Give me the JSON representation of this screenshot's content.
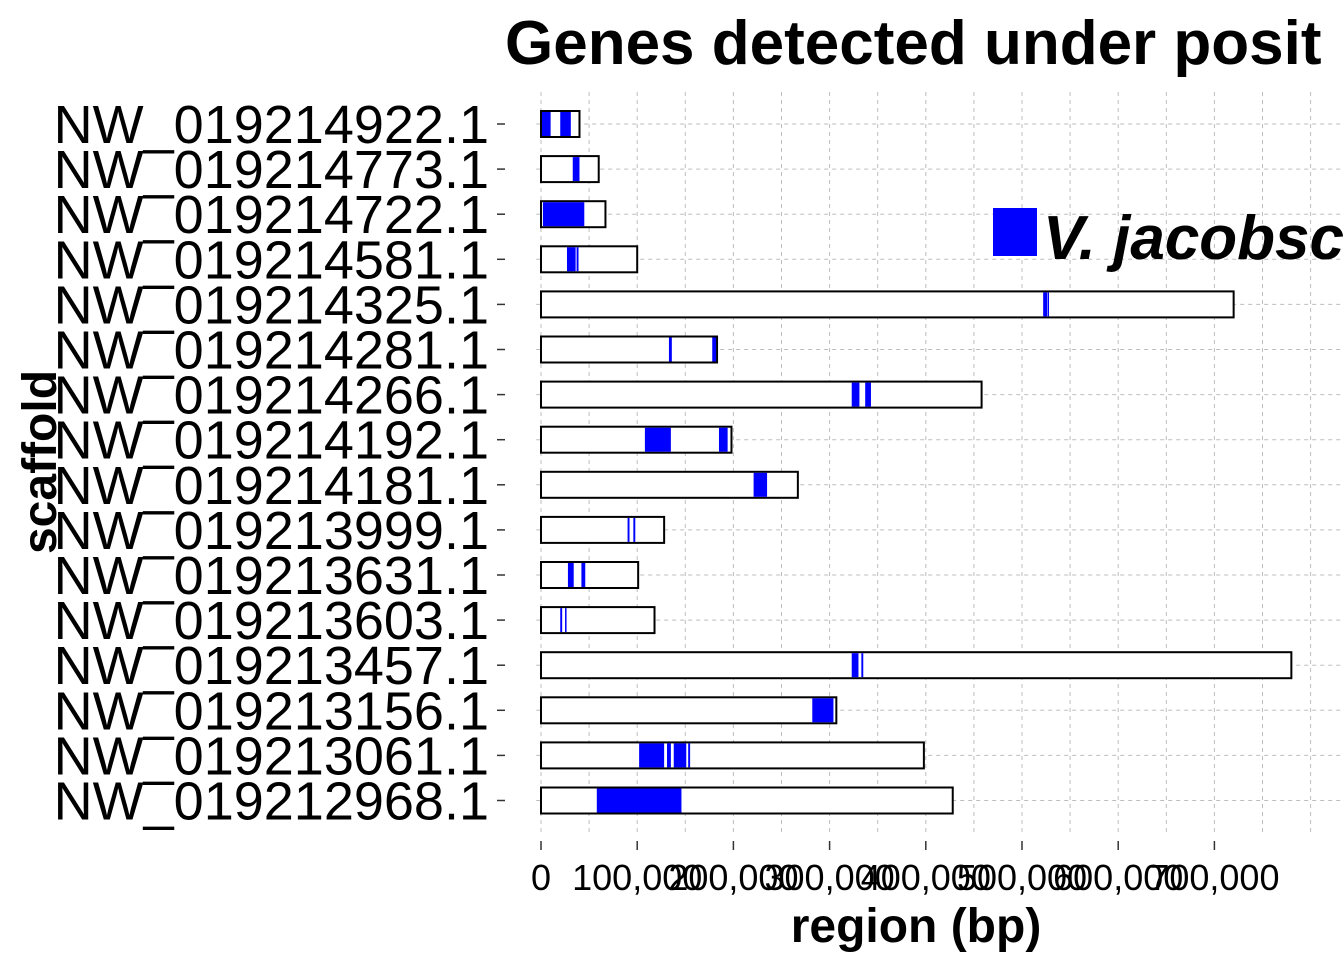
{
  "chart_data": {
    "type": "bar",
    "title": "Genes detected under posit",
    "xlabel": "region (bp)",
    "ylabel": "scaffold",
    "xlim": [
      -5000,
      830000
    ],
    "x_ticks": [
      0,
      100000,
      200000,
      300000,
      400000,
      500000,
      600000,
      700000
    ],
    "x_tick_labels": [
      "0",
      "100,000",
      "200,000",
      "300,000",
      "400,000",
      "500,000",
      "600,000",
      "700,000"
    ],
    "grid": true,
    "legend": {
      "placement": "top-right",
      "entries": [
        {
          "label": "V. jacobsc",
          "color": "#0000ff"
        }
      ]
    },
    "colors": {
      "gene": "#0000ff",
      "scaffold_fill": "#ffffff",
      "scaffold_stroke": "#000000"
    },
    "scaffolds": [
      {
        "name": "NW_019214922.1",
        "length": 40000,
        "genes": [
          [
            1000,
            10000
          ],
          [
            20000,
            31000
          ]
        ]
      },
      {
        "name": "NW_019214773.1",
        "length": 60000,
        "genes": [
          [
            33000,
            40000
          ]
        ]
      },
      {
        "name": "NW_019214722.1",
        "length": 67000,
        "genes": [
          [
            2000,
            45000
          ]
        ]
      },
      {
        "name": "NW_019214581.1",
        "length": 100000,
        "genes": [
          [
            27000,
            36000
          ],
          [
            37000,
            39000
          ]
        ]
      },
      {
        "name": "NW_019214325.1",
        "length": 720000,
        "genes": [
          [
            522000,
            526000
          ],
          [
            526500,
            528000
          ]
        ]
      },
      {
        "name": "NW_019214281.1",
        "length": 183000,
        "genes": [
          [
            133000,
            136000
          ],
          [
            178000,
            182000
          ]
        ]
      },
      {
        "name": "NW_019214266.1",
        "length": 458000,
        "genes": [
          [
            323000,
            331000
          ],
          [
            337000,
            343000
          ]
        ]
      },
      {
        "name": "NW_019214192.1",
        "length": 198000,
        "genes": [
          [
            108000,
            135000
          ],
          [
            185000,
            194000
          ]
        ]
      },
      {
        "name": "NW_019214181.1",
        "length": 267000,
        "genes": [
          [
            221000,
            235000
          ]
        ]
      },
      {
        "name": "NW_019213999.1",
        "length": 128000,
        "genes": [
          [
            90000,
            92000
          ],
          [
            96000,
            98000
          ]
        ]
      },
      {
        "name": "NW_019213631.1",
        "length": 101000,
        "genes": [
          [
            28000,
            34000
          ],
          [
            42000,
            46000
          ]
        ]
      },
      {
        "name": "NW_019213603.1",
        "length": 118000,
        "genes": [
          [
            20000,
            22000
          ],
          [
            25000,
            26500
          ]
        ]
      },
      {
        "name": "NW_019213457.1",
        "length": 780000,
        "genes": [
          [
            323000,
            330000
          ],
          [
            333000,
            335000
          ]
        ]
      },
      {
        "name": "NW_019213156.1",
        "length": 307000,
        "genes": [
          [
            282000,
            304000
          ]
        ]
      },
      {
        "name": "NW_019213061.1",
        "length": 398000,
        "genes": [
          [
            102000,
            128000
          ],
          [
            131000,
            135000
          ],
          [
            138000,
            151000
          ],
          [
            153000,
            155000
          ]
        ]
      },
      {
        "name": "NW_019212968.1",
        "length": 428000,
        "genes": [
          [
            58000,
            146000
          ]
        ]
      }
    ]
  }
}
